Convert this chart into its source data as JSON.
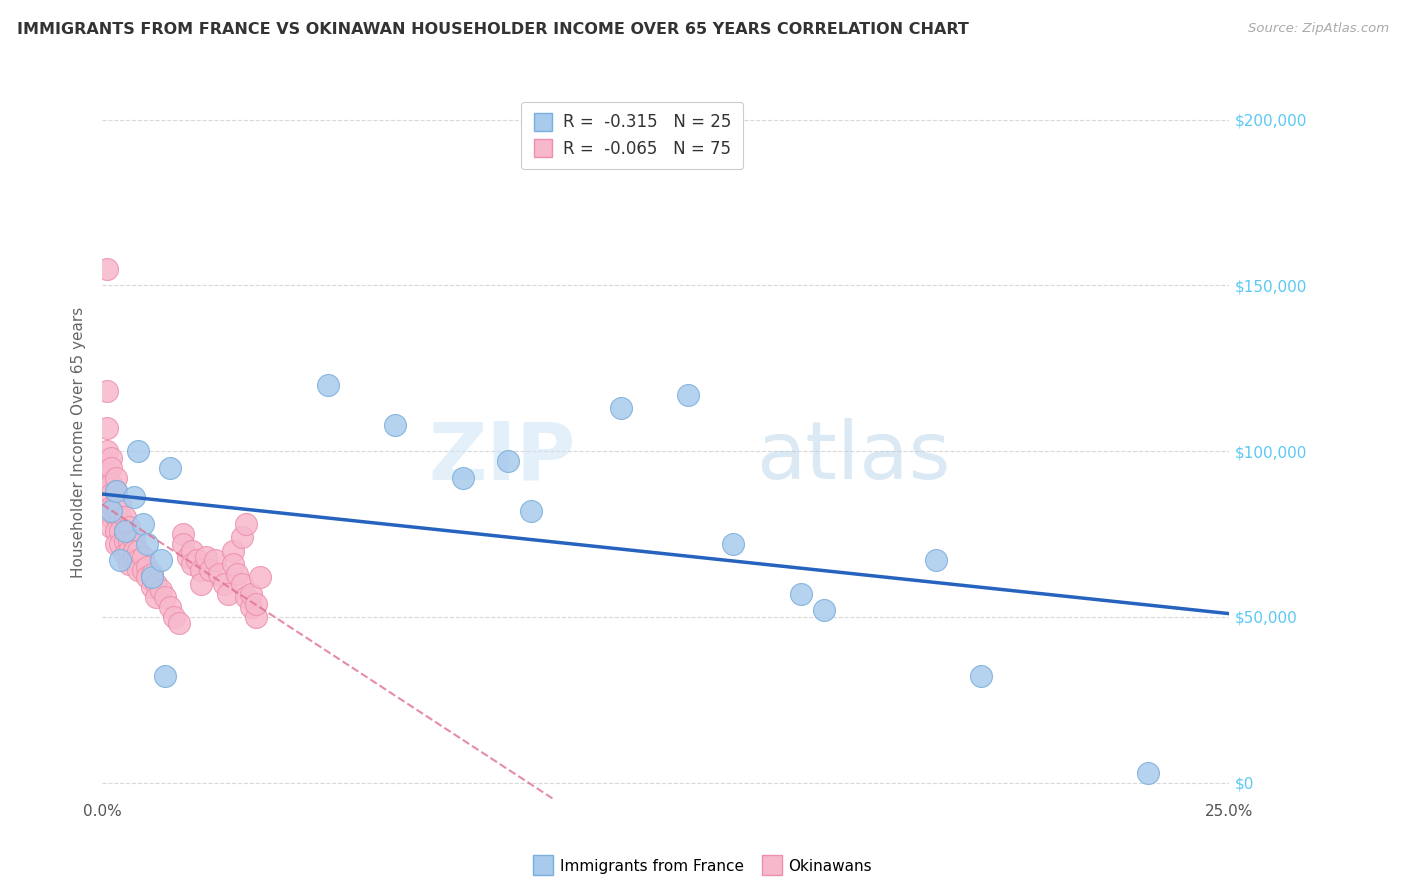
{
  "title": "IMMIGRANTS FROM FRANCE VS OKINAWAN HOUSEHOLDER INCOME OVER 65 YEARS CORRELATION CHART",
  "source": "Source: ZipAtlas.com",
  "ylabel": "Householder Income Over 65 years",
  "xlim": [
    0.0,
    0.25
  ],
  "ylim": [
    -5000,
    210000
  ],
  "yticks": [
    0,
    50000,
    100000,
    150000,
    200000
  ],
  "xticks": [
    0.0,
    0.05,
    0.1,
    0.15,
    0.2,
    0.25
  ],
  "xtick_labels_show": [
    "0.0%",
    "",
    "",
    "",
    "",
    "25.0%"
  ],
  "france_color": "#a8caed",
  "france_edge_color": "#7aaedc",
  "okinawa_color": "#f7b8cc",
  "okinawa_edge_color": "#ee8fab",
  "france_line_color": "#2563be",
  "okinawa_line_color": "#e07090",
  "france_R": -0.315,
  "france_N": 25,
  "okinawa_R": -0.065,
  "okinawa_N": 75,
  "france_scatter_x": [
    0.002,
    0.003,
    0.004,
    0.005,
    0.007,
    0.008,
    0.009,
    0.01,
    0.011,
    0.013,
    0.014,
    0.015,
    0.05,
    0.065,
    0.08,
    0.09,
    0.095,
    0.115,
    0.13,
    0.14,
    0.155,
    0.16,
    0.185,
    0.195,
    0.232
  ],
  "france_scatter_y": [
    82000,
    88000,
    67000,
    76000,
    86000,
    100000,
    78000,
    72000,
    62000,
    67000,
    32000,
    95000,
    120000,
    108000,
    92000,
    97000,
    82000,
    113000,
    117000,
    72000,
    57000,
    52000,
    67000,
    32000,
    3000
  ],
  "okinawa_scatter_x": [
    0.001,
    0.001,
    0.001,
    0.001,
    0.001,
    0.002,
    0.002,
    0.002,
    0.002,
    0.002,
    0.002,
    0.002,
    0.003,
    0.003,
    0.003,
    0.003,
    0.003,
    0.003,
    0.004,
    0.004,
    0.004,
    0.004,
    0.005,
    0.005,
    0.005,
    0.005,
    0.006,
    0.006,
    0.006,
    0.006,
    0.007,
    0.007,
    0.007,
    0.008,
    0.008,
    0.008,
    0.009,
    0.009,
    0.01,
    0.01,
    0.011,
    0.011,
    0.012,
    0.012,
    0.013,
    0.014,
    0.015,
    0.016,
    0.017,
    0.018,
    0.018,
    0.019,
    0.02,
    0.02,
    0.021,
    0.022,
    0.022,
    0.023,
    0.024,
    0.025,
    0.026,
    0.027,
    0.028,
    0.029,
    0.029,
    0.03,
    0.031,
    0.031,
    0.032,
    0.032,
    0.033,
    0.033,
    0.034,
    0.034,
    0.035
  ],
  "okinawa_scatter_y": [
    155000,
    118000,
    107000,
    100000,
    93000,
    98000,
    95000,
    90000,
    87000,
    83000,
    80000,
    77000,
    92000,
    88000,
    84000,
    80000,
    76000,
    72000,
    84000,
    80000,
    76000,
    72000,
    80000,
    76000,
    73000,
    69000,
    77000,
    73000,
    70000,
    66000,
    73000,
    70000,
    67000,
    70000,
    67000,
    64000,
    68000,
    64000,
    65000,
    62000,
    63000,
    59000,
    60000,
    56000,
    58000,
    56000,
    53000,
    50000,
    48000,
    75000,
    72000,
    68000,
    70000,
    66000,
    67000,
    64000,
    60000,
    68000,
    64000,
    67000,
    63000,
    60000,
    57000,
    70000,
    66000,
    63000,
    60000,
    74000,
    56000,
    78000,
    53000,
    57000,
    50000,
    54000,
    62000
  ],
  "watermark_zip": "ZIP",
  "watermark_atlas": "atlas",
  "background_color": "#ffffff",
  "grid_color": "#d8d8d8",
  "right_tick_color": "#5bc8f5",
  "title_color": "#333333",
  "source_color": "#aaaaaa",
  "ylabel_color": "#666666"
}
